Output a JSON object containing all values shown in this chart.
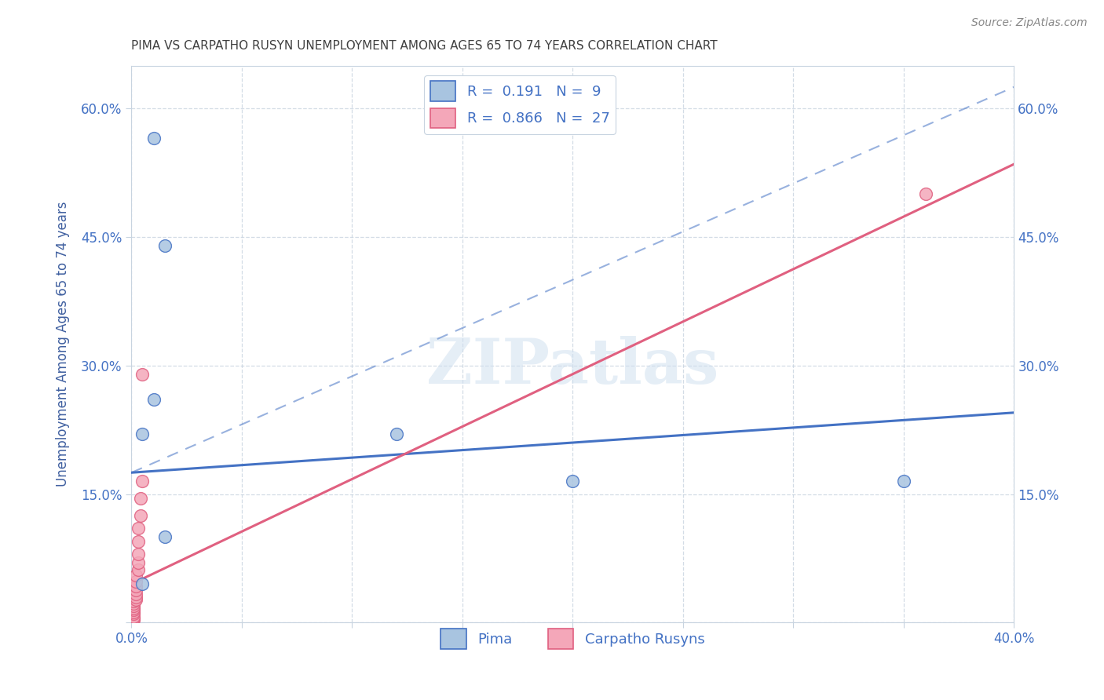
{
  "title": "PIMA VS CARPATHO RUSYN UNEMPLOYMENT AMONG AGES 65 TO 74 YEARS CORRELATION CHART",
  "source": "Source: ZipAtlas.com",
  "xlabel": "",
  "ylabel": "Unemployment Among Ages 65 to 74 years",
  "xlim": [
    0.0,
    0.4
  ],
  "ylim": [
    0.0,
    0.65
  ],
  "xticks": [
    0.0,
    0.05,
    0.1,
    0.15,
    0.2,
    0.25,
    0.3,
    0.35,
    0.4
  ],
  "yticks": [
    0.0,
    0.15,
    0.3,
    0.45,
    0.6
  ],
  "xtick_labels": [
    "0.0%",
    "",
    "",
    "",
    "",
    "",
    "",
    "",
    "40.0%"
  ],
  "ytick_labels": [
    "",
    "15.0%",
    "30.0%",
    "45.0%",
    "60.0%"
  ],
  "pima_R": 0.191,
  "pima_N": 9,
  "carpatho_R": 0.866,
  "carpatho_N": 27,
  "pima_color": "#a8c4e0",
  "pima_line_color": "#4472c4",
  "carpatho_color": "#f4a7b9",
  "carpatho_line_color": "#e06080",
  "legend_pima_fill": "#a8c4e0",
  "legend_carpatho_fill": "#f4a7b9",
  "watermark": "ZIPatlas",
  "pima_points": [
    [
      0.01,
      0.565
    ],
    [
      0.015,
      0.44
    ],
    [
      0.01,
      0.26
    ],
    [
      0.005,
      0.22
    ],
    [
      0.12,
      0.22
    ],
    [
      0.2,
      0.165
    ],
    [
      0.015,
      0.1
    ],
    [
      0.005,
      0.045
    ],
    [
      0.35,
      0.165
    ]
  ],
  "carpatho_points": [
    [
      0.001,
      0.003
    ],
    [
      0.001,
      0.005
    ],
    [
      0.001,
      0.007
    ],
    [
      0.001,
      0.01
    ],
    [
      0.001,
      0.012
    ],
    [
      0.001,
      0.015
    ],
    [
      0.001,
      0.017
    ],
    [
      0.001,
      0.02
    ],
    [
      0.001,
      0.022
    ],
    [
      0.001,
      0.025
    ],
    [
      0.002,
      0.027
    ],
    [
      0.002,
      0.03
    ],
    [
      0.002,
      0.033
    ],
    [
      0.002,
      0.038
    ],
    [
      0.002,
      0.042
    ],
    [
      0.002,
      0.048
    ],
    [
      0.002,
      0.055
    ],
    [
      0.003,
      0.062
    ],
    [
      0.003,
      0.07
    ],
    [
      0.003,
      0.08
    ],
    [
      0.003,
      0.095
    ],
    [
      0.003,
      0.11
    ],
    [
      0.004,
      0.125
    ],
    [
      0.004,
      0.145
    ],
    [
      0.005,
      0.165
    ],
    [
      0.005,
      0.29
    ],
    [
      0.36,
      0.5
    ]
  ],
  "pima_line_x0": 0.0,
  "pima_line_y0": 0.175,
  "pima_line_x1": 0.4,
  "pima_line_y1": 0.245,
  "carpatho_line_x0": 0.0,
  "carpatho_line_y0": 0.045,
  "carpatho_line_x1": 0.4,
  "carpatho_line_y1": 0.535,
  "dash_line_x0": 0.0,
  "dash_line_y0": 0.175,
  "dash_line_x1": 0.4,
  "dash_line_y1": 0.625,
  "background_color": "#ffffff",
  "grid_color": "#c8d4e0",
  "title_color": "#404040",
  "axis_label_color": "#4060a0",
  "tick_label_color": "#4472c4"
}
